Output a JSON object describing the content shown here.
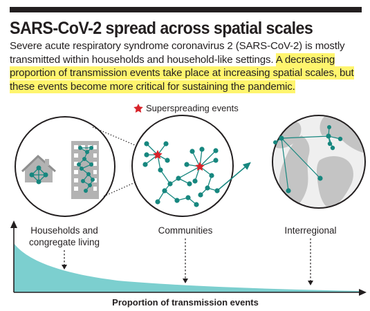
{
  "header": {
    "title": "SARS-CoV-2 spread across spatial scales",
    "description_plain": "Severe acute respiratory syndrome coronavirus 2 (SARS-CoV-2) is mostly transmitted within households and household-like settings.",
    "description_highlight": "A decreasing proportion of transmission events take place at increasing spatial scales, but these events become more critical for sustaining the pandemic."
  },
  "legend": {
    "superspreading_label": "Superspreading events"
  },
  "scales": [
    {
      "label_line1": "Households and",
      "label_line2": "congregate living"
    },
    {
      "label_line1": "Communities"
    },
    {
      "label_line1": "Interregional"
    }
  ],
  "axis": {
    "xlabel": "Proportion of transmission events"
  },
  "colors": {
    "teal_node": "#17877f",
    "teal_fill": "#7ccfcf",
    "star": "#d8232a",
    "highlight": "#fff56e",
    "house_gray": "#b3b3b3",
    "globe_land": "#c4c4c4",
    "globe_ocean": "#efefef"
  }
}
